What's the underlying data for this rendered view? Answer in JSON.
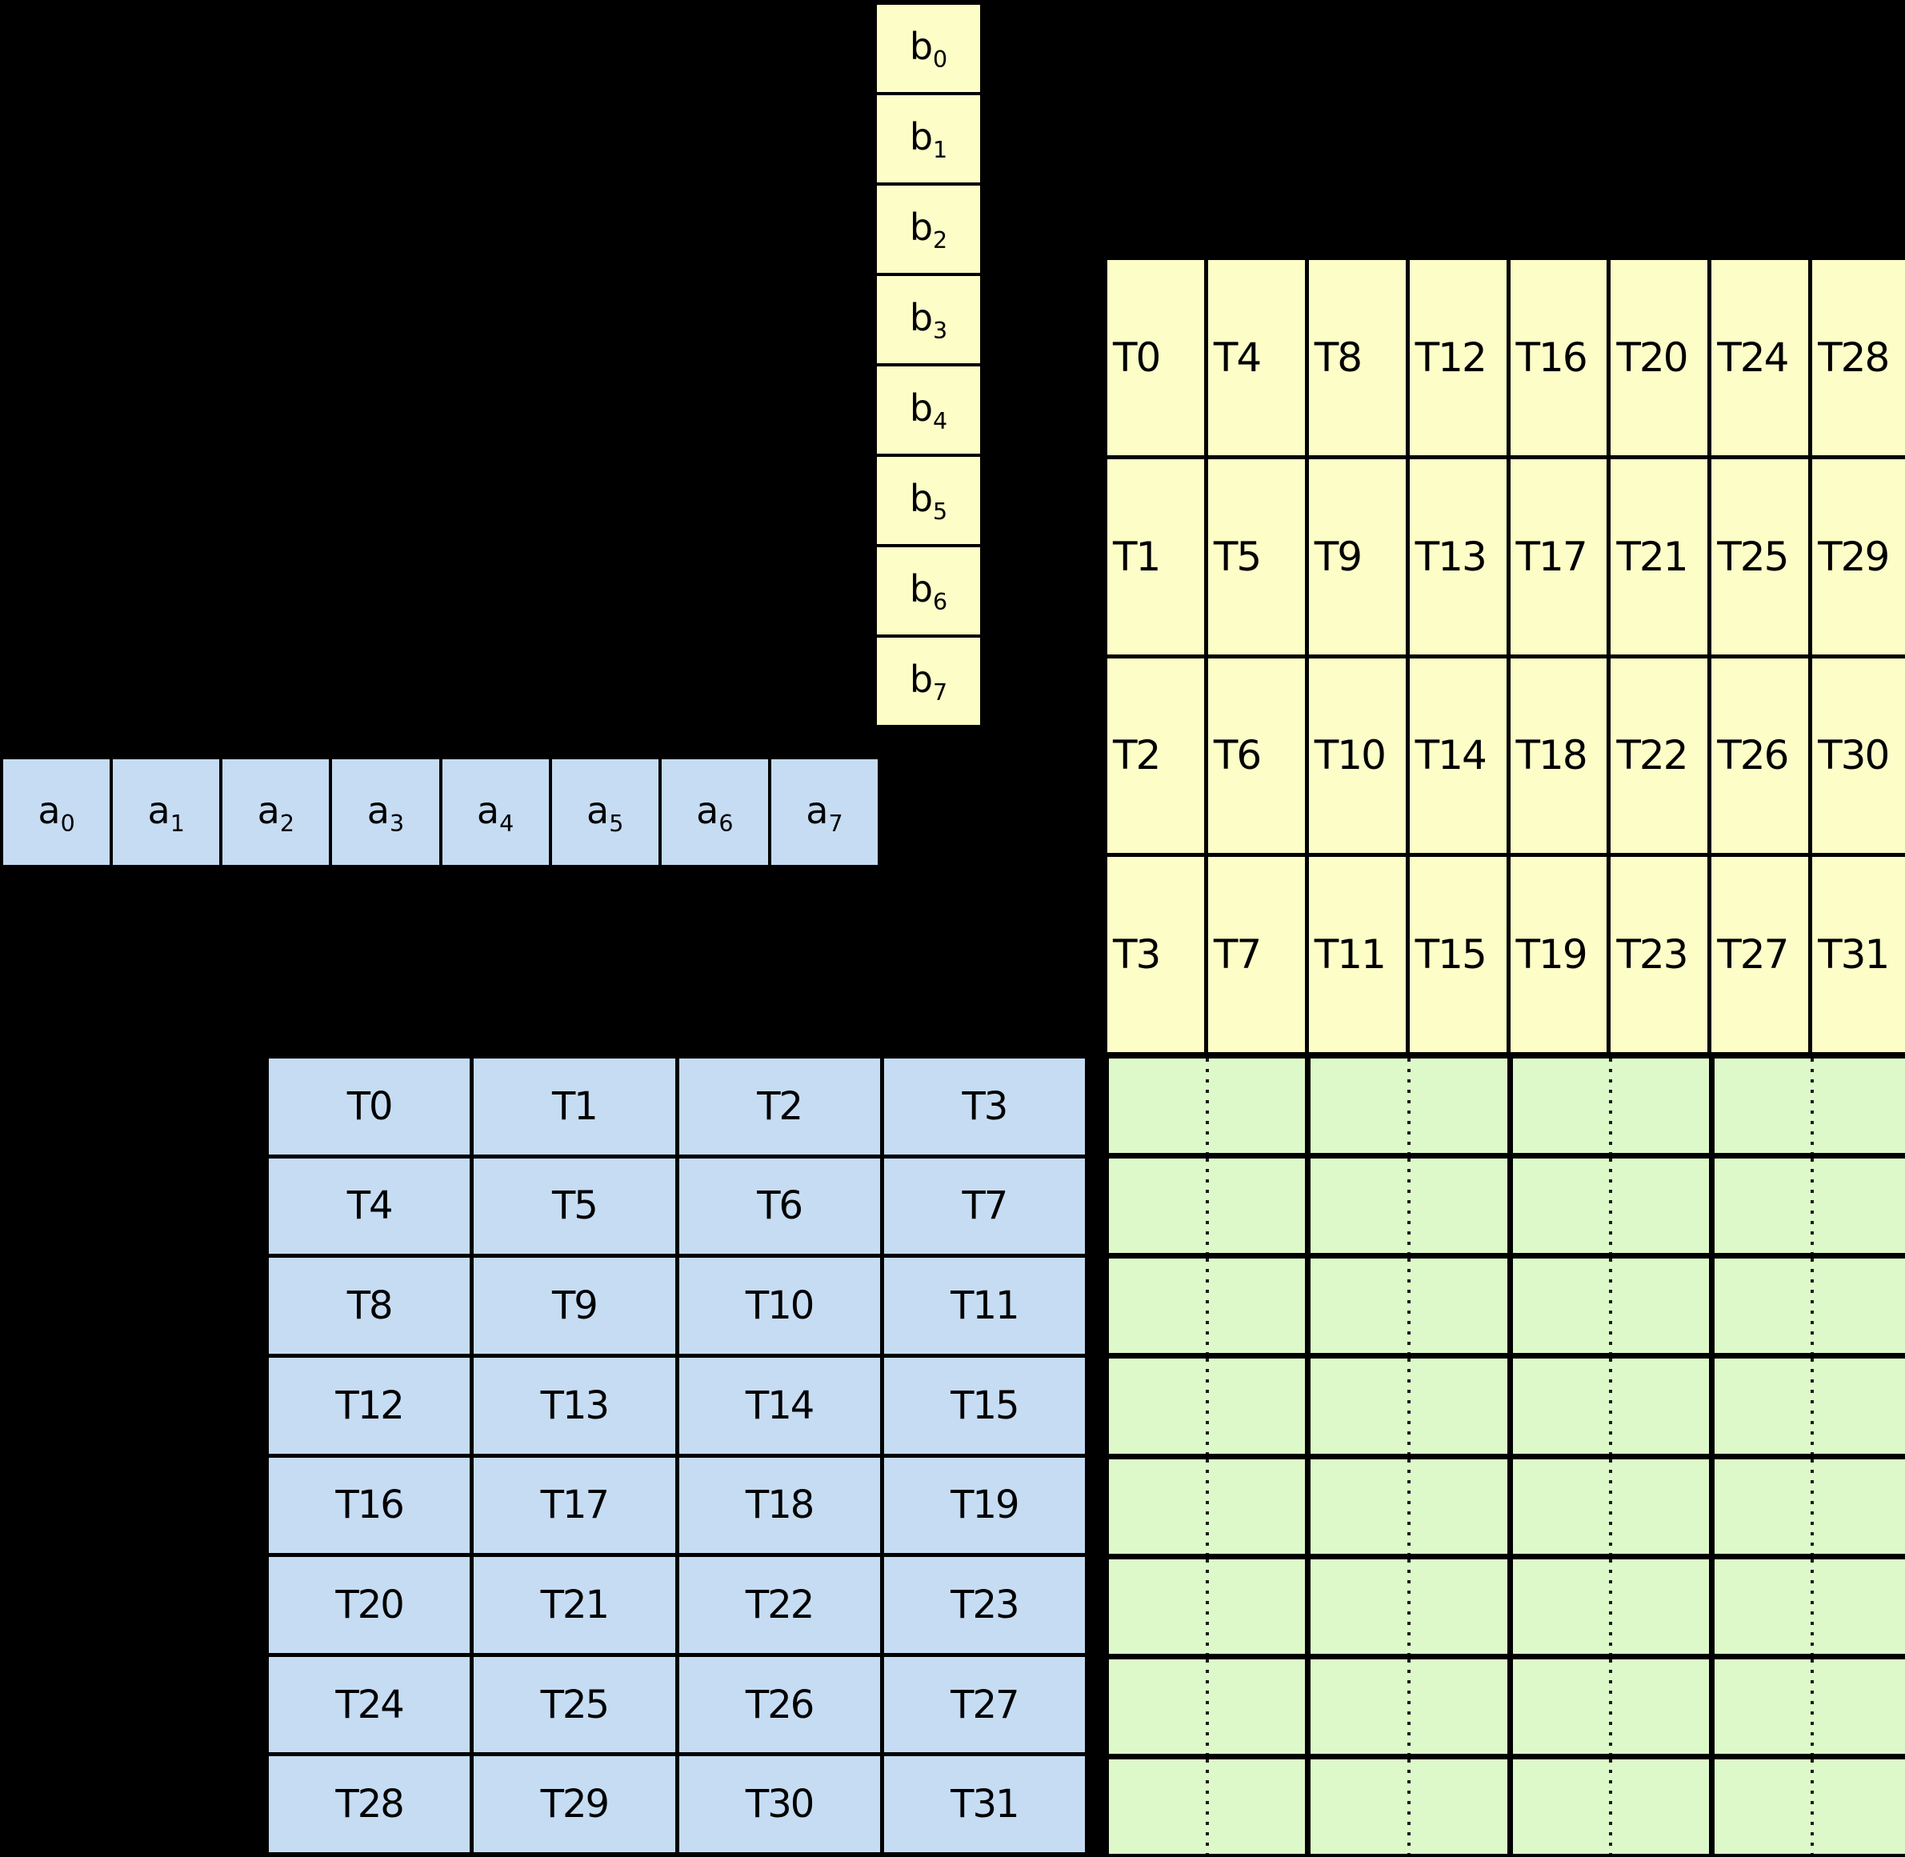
{
  "colors": {
    "background": "#000000",
    "border": "#000000",
    "text": "#000000",
    "yellow": "#FDFDC8",
    "blue": "#C5DCF3",
    "green": "#DDF9C9"
  },
  "vectors": {
    "b": {
      "orientation": "vertical",
      "cells": [
        {
          "base": "b",
          "sub": "0"
        },
        {
          "base": "b",
          "sub": "1"
        },
        {
          "base": "b",
          "sub": "2"
        },
        {
          "base": "b",
          "sub": "3"
        },
        {
          "base": "b",
          "sub": "4"
        },
        {
          "base": "b",
          "sub": "5"
        },
        {
          "base": "b",
          "sub": "6"
        },
        {
          "base": "b",
          "sub": "7"
        }
      ]
    },
    "a": {
      "orientation": "horizontal",
      "cells": [
        {
          "base": "a",
          "sub": "0"
        },
        {
          "base": "a",
          "sub": "1"
        },
        {
          "base": "a",
          "sub": "2"
        },
        {
          "base": "a",
          "sub": "3"
        },
        {
          "base": "a",
          "sub": "4"
        },
        {
          "base": "a",
          "sub": "5"
        },
        {
          "base": "a",
          "sub": "6"
        },
        {
          "base": "a",
          "sub": "7"
        }
      ]
    }
  },
  "grids": {
    "b": {
      "rows_count": 4,
      "cols_count": 8,
      "rows": [
        [
          "T0",
          "T4",
          "T8",
          "T12",
          "T16",
          "T20",
          "T24",
          "T28"
        ],
        [
          "T1",
          "T5",
          "T9",
          "T13",
          "T17",
          "T21",
          "T25",
          "T29"
        ],
        [
          "T2",
          "T6",
          "T10",
          "T14",
          "T18",
          "T22",
          "T26",
          "T30"
        ],
        [
          "T3",
          "T7",
          "T11",
          "T15",
          "T19",
          "T23",
          "T27",
          "T31"
        ]
      ]
    },
    "a": {
      "rows_count": 8,
      "cols_count": 4,
      "rows": [
        [
          "T0",
          "T1",
          "T2",
          "T3"
        ],
        [
          "T4",
          "T5",
          "T6",
          "T7"
        ],
        [
          "T8",
          "T9",
          "T10",
          "T11"
        ],
        [
          "T12",
          "T13",
          "T14",
          "T15"
        ],
        [
          "T16",
          "T17",
          "T18",
          "T19"
        ],
        [
          "T20",
          "T21",
          "T22",
          "T23"
        ],
        [
          "T24",
          "T25",
          "T26",
          "T27"
        ],
        [
          "T28",
          "T29",
          "T30",
          "T31"
        ]
      ]
    },
    "result": {
      "rows_count": 8,
      "cols_count": 4,
      "dotted_mid_divider_per_column": true
    }
  }
}
